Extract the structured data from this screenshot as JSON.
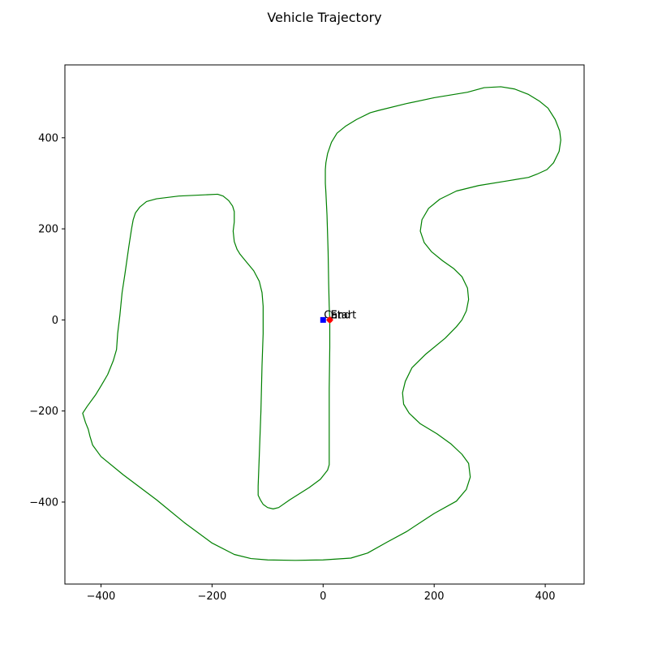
{
  "chart_data": {
    "type": "line",
    "title": "Vehicle Trajectory",
    "xlabel": "",
    "ylabel": "",
    "xlim": [
      -465,
      470
    ],
    "ylim": [
      -580,
      560
    ],
    "xticks": [
      -400,
      -200,
      0,
      200,
      400
    ],
    "yticks": [
      400,
      200,
      0,
      -200,
      -400
    ],
    "xtick_labels": [
      "−400",
      "−200",
      "0",
      "200",
      "400"
    ],
    "ytick_labels": [
      "400",
      "200",
      "0",
      "−200",
      "−400"
    ],
    "grid": false,
    "colors": {
      "trajectory": "#008000",
      "car": "#0000ff",
      "start": "#ff0000",
      "end": "#ff0000"
    },
    "series": [
      {
        "name": "",
        "points": [
          [
            12,
            0
          ],
          [
            12,
            -60
          ],
          [
            11,
            -150
          ],
          [
            11,
            -250
          ],
          [
            11,
            -300
          ],
          [
            11,
            -318
          ],
          [
            8,
            -330
          ],
          [
            -5,
            -350
          ],
          [
            -25,
            -368
          ],
          [
            -60,
            -395
          ],
          [
            -80,
            -412
          ],
          [
            -90,
            -415
          ],
          [
            -100,
            -412
          ],
          [
            -108,
            -405
          ],
          [
            -113,
            -395
          ],
          [
            -117,
            -385
          ],
          [
            -117,
            -365
          ],
          [
            -115,
            -300
          ],
          [
            -112,
            -200
          ],
          [
            -110,
            -100
          ],
          [
            -108,
            -30
          ],
          [
            -108,
            0
          ],
          [
            -108,
            30
          ],
          [
            -110,
            60
          ],
          [
            -115,
            85
          ],
          [
            -125,
            108
          ],
          [
            -140,
            130
          ],
          [
            -150,
            145
          ],
          [
            -155,
            155
          ],
          [
            -160,
            172
          ],
          [
            -162,
            195
          ],
          [
            -160,
            215
          ],
          [
            -160,
            238
          ],
          [
            -163,
            250
          ],
          [
            -170,
            262
          ],
          [
            -180,
            272
          ],
          [
            -190,
            276
          ],
          [
            -260,
            272
          ],
          [
            -300,
            266
          ],
          [
            -318,
            260
          ],
          [
            -330,
            248
          ],
          [
            -338,
            235
          ],
          [
            -342,
            220
          ],
          [
            -345,
            200
          ],
          [
            -350,
            160
          ],
          [
            -357,
            100
          ],
          [
            -362,
            60
          ],
          [
            -366,
            10
          ],
          [
            -370,
            -30
          ],
          [
            -372,
            -65
          ],
          [
            -378,
            -90
          ],
          [
            -388,
            -120
          ],
          [
            -400,
            -145
          ],
          [
            -410,
            -165
          ],
          [
            -425,
            -190
          ],
          [
            -433,
            -205
          ],
          [
            -428,
            -225
          ],
          [
            -423,
            -240
          ],
          [
            -420,
            -255
          ],
          [
            -415,
            -275
          ],
          [
            -400,
            -300
          ],
          [
            -360,
            -340
          ],
          [
            -300,
            -395
          ],
          [
            -250,
            -445
          ],
          [
            -200,
            -490
          ],
          [
            -160,
            -515
          ],
          [
            -130,
            -524
          ],
          [
            -100,
            -527
          ],
          [
            -50,
            -528
          ],
          [
            0,
            -527
          ],
          [
            50,
            -523
          ],
          [
            80,
            -512
          ],
          [
            115,
            -488
          ],
          [
            150,
            -465
          ],
          [
            200,
            -425
          ],
          [
            240,
            -398
          ],
          [
            258,
            -372
          ],
          [
            265,
            -345
          ],
          [
            262,
            -315
          ],
          [
            250,
            -295
          ],
          [
            230,
            -272
          ],
          [
            205,
            -250
          ],
          [
            175,
            -228
          ],
          [
            155,
            -205
          ],
          [
            145,
            -185
          ],
          [
            143,
            -160
          ],
          [
            148,
            -135
          ],
          [
            160,
            -105
          ],
          [
            185,
            -75
          ],
          [
            220,
            -40
          ],
          [
            240,
            -15
          ],
          [
            250,
            0
          ],
          [
            258,
            20
          ],
          [
            262,
            45
          ],
          [
            260,
            70
          ],
          [
            250,
            95
          ],
          [
            235,
            113
          ],
          [
            215,
            130
          ],
          [
            195,
            150
          ],
          [
            182,
            170
          ],
          [
            175,
            195
          ],
          [
            178,
            220
          ],
          [
            190,
            245
          ],
          [
            210,
            265
          ],
          [
            240,
            283
          ],
          [
            280,
            295
          ],
          [
            330,
            305
          ],
          [
            370,
            313
          ],
          [
            385,
            320
          ],
          [
            403,
            330
          ],
          [
            415,
            345
          ],
          [
            425,
            370
          ],
          [
            428,
            395
          ],
          [
            426,
            415
          ],
          [
            418,
            440
          ],
          [
            405,
            465
          ],
          [
            390,
            480
          ],
          [
            370,
            495
          ],
          [
            345,
            507
          ],
          [
            320,
            512
          ],
          [
            290,
            510
          ],
          [
            260,
            500
          ],
          [
            200,
            488
          ],
          [
            150,
            475
          ],
          [
            100,
            460
          ],
          [
            85,
            455
          ],
          [
            60,
            440
          ],
          [
            40,
            425
          ],
          [
            25,
            410
          ],
          [
            15,
            390
          ],
          [
            8,
            365
          ],
          [
            5,
            345
          ],
          [
            4,
            330
          ],
          [
            4,
            300
          ],
          [
            5,
            280
          ],
          [
            7,
            230
          ],
          [
            9,
            150
          ],
          [
            10,
            80
          ],
          [
            11,
            30
          ],
          [
            12,
            0
          ]
        ]
      }
    ],
    "markers": [
      {
        "label": "Car",
        "x": 0,
        "y": 0,
        "shape": "square",
        "color": "#0000ff"
      },
      {
        "label": "Start",
        "x": 12,
        "y": 0,
        "shape": "circle",
        "color": "#ff0000"
      },
      {
        "label": "End",
        "x": 12,
        "y": 0,
        "shape": "diamond",
        "color": "#ff0000"
      }
    ]
  }
}
